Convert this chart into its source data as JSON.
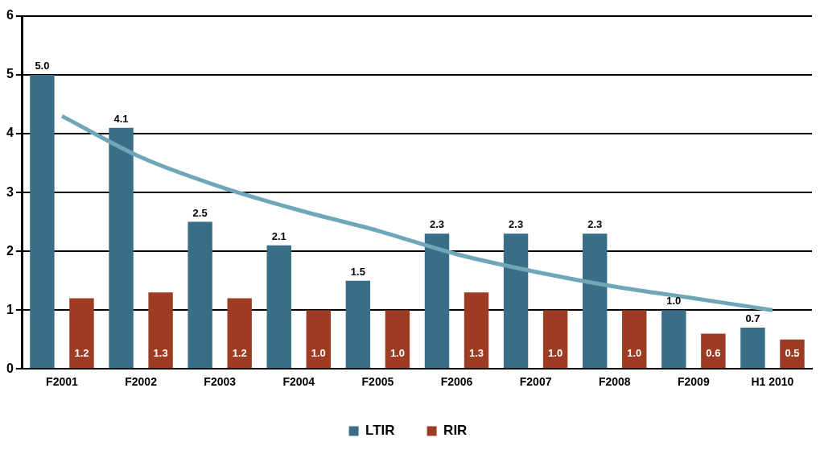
{
  "chart_data": {
    "type": "bar",
    "categories": [
      "F2001",
      "F2002",
      "F2003",
      "F2004",
      "F2005",
      "F2006",
      "F2007",
      "F2008",
      "F2009",
      "H1 2010"
    ],
    "series": [
      {
        "name": "LTIR",
        "color": "#386e87",
        "values": [
          5.0,
          4.1,
          2.5,
          2.1,
          1.5,
          2.3,
          2.3,
          2.3,
          1.0,
          0.7
        ],
        "value_labels": [
          "5.0",
          "4.1",
          "2.5",
          "2.1",
          "1.5",
          "2.3",
          "2.3",
          "2.3",
          "1.0",
          "0.7"
        ]
      },
      {
        "name": "RIR",
        "color": "#9d3c22",
        "values": [
          1.2,
          1.3,
          1.2,
          1.0,
          1.0,
          1.3,
          1.0,
          1.0,
          0.6,
          0.5
        ],
        "value_labels": [
          "1.2",
          "1.3",
          "1.2",
          "1.0",
          "1.0",
          "1.3",
          "1.0",
          "1.0",
          "0.6",
          "0.5"
        ]
      },
      {
        "type": "line",
        "color": "#6fa6b8",
        "values": [
          4.3,
          3.6,
          3.1,
          2.7,
          2.35,
          1.95,
          1.65,
          1.4,
          1.2,
          1.0
        ]
      }
    ],
    "ylim": [
      0,
      6
    ],
    "yticks": [
      0,
      1,
      2,
      3,
      4,
      5,
      6
    ],
    "grid": "y",
    "legend": "bottom"
  }
}
